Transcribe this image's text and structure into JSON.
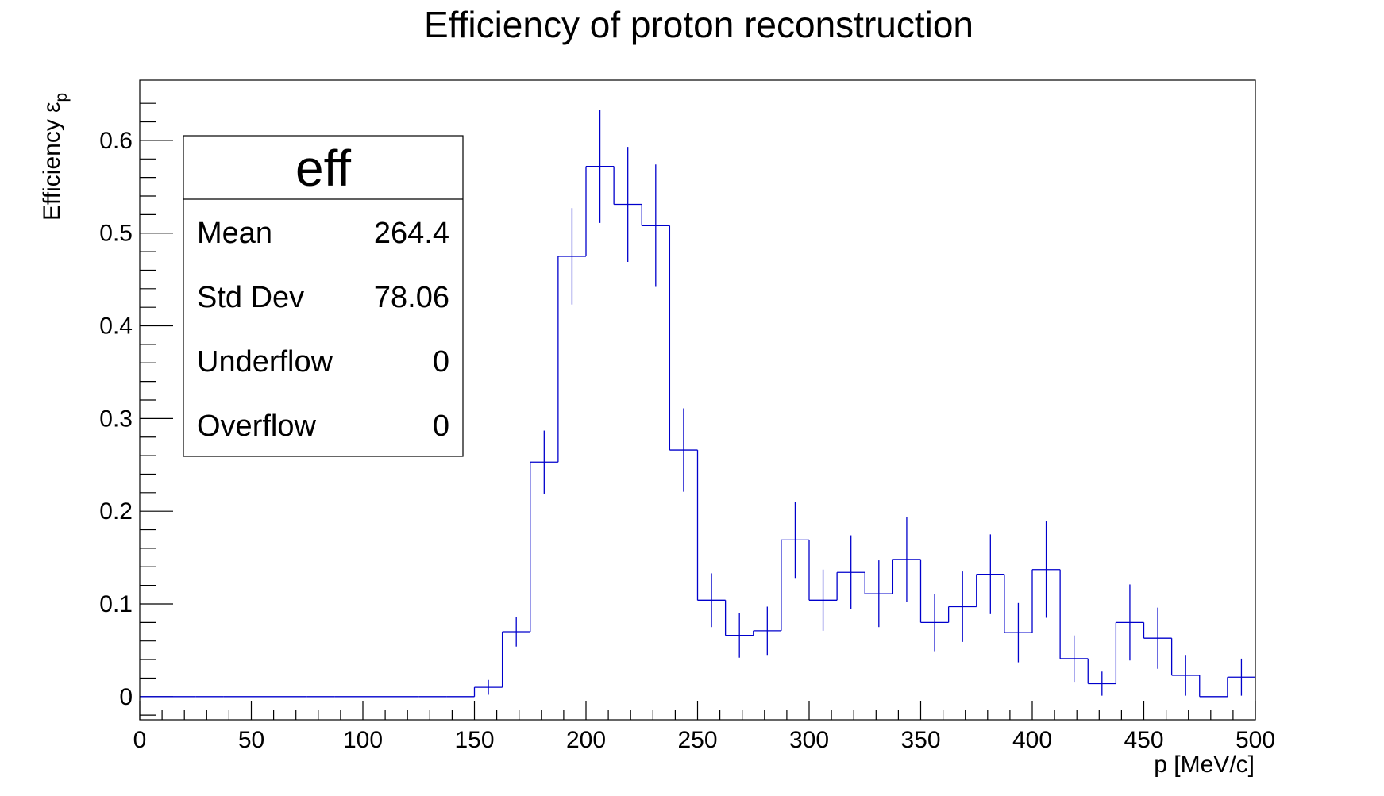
{
  "chart_data": {
    "type": "histogram",
    "title": "Efficiency of proton reconstruction",
    "xlabel": "p [MeV/c]",
    "ylabel_main": "Efficiency ε",
    "ylabel_sub": "p",
    "xlim": [
      0,
      500
    ],
    "ylim": [
      -0.025,
      0.665
    ],
    "x_ticks": [
      0,
      50,
      100,
      150,
      200,
      250,
      300,
      350,
      400,
      450,
      500
    ],
    "x_tick_labels": [
      "0",
      "50",
      "100",
      "150",
      "200",
      "250",
      "300",
      "350",
      "400",
      "450",
      "500"
    ],
    "y_ticks": [
      0,
      0.1,
      0.2,
      0.3,
      0.4,
      0.5,
      0.6
    ],
    "y_tick_labels": [
      "0",
      "0.1",
      "0.2",
      "0.3",
      "0.4",
      "0.5",
      "0.6"
    ],
    "line_color": "#0000cc",
    "bins": {
      "x_low": [
        0,
        12.5,
        25,
        37.5,
        50,
        62.5,
        75,
        87.5,
        100,
        112.5,
        125,
        137.5,
        150,
        162.5,
        175,
        187.5,
        200,
        212.5,
        225,
        237.5,
        250,
        262.5,
        275,
        287.5,
        300,
        312.5,
        325,
        337.5,
        350,
        362.5,
        375,
        387.5,
        400,
        412.5,
        425,
        437.5,
        450,
        462.5,
        475,
        487.5
      ],
      "bin_width": 12.5,
      "values": [
        0,
        0,
        0,
        0,
        0,
        0,
        0,
        0,
        0,
        0,
        0,
        0,
        0.01,
        0.07,
        0.253,
        0.475,
        0.572,
        0.531,
        0.508,
        0.266,
        0.104,
        0.066,
        0.071,
        0.169,
        0.104,
        0.134,
        0.111,
        0.148,
        0.08,
        0.097,
        0.132,
        0.069,
        0.137,
        0.041,
        0.014,
        0.08,
        0.063,
        0.023,
        0,
        0.021
      ],
      "errors": [
        0,
        0,
        0,
        0,
        0,
        0,
        0,
        0,
        0,
        0,
        0,
        0,
        0.008,
        0.016,
        0.034,
        0.052,
        0.061,
        0.062,
        0.066,
        0.045,
        0.029,
        0.024,
        0.026,
        0.041,
        0.033,
        0.04,
        0.036,
        0.046,
        0.031,
        0.038,
        0.043,
        0.032,
        0.052,
        0.025,
        0.013,
        0.041,
        0.033,
        0.022,
        0,
        0.02
      ]
    },
    "stats_box": {
      "title": "eff",
      "rows": [
        {
          "label": "Mean",
          "value": "264.4"
        },
        {
          "label": "Std Dev",
          "value": "78.06"
        },
        {
          "label": "Underflow",
          "value": "0"
        },
        {
          "label": "Overflow",
          "value": "0"
        }
      ]
    }
  }
}
